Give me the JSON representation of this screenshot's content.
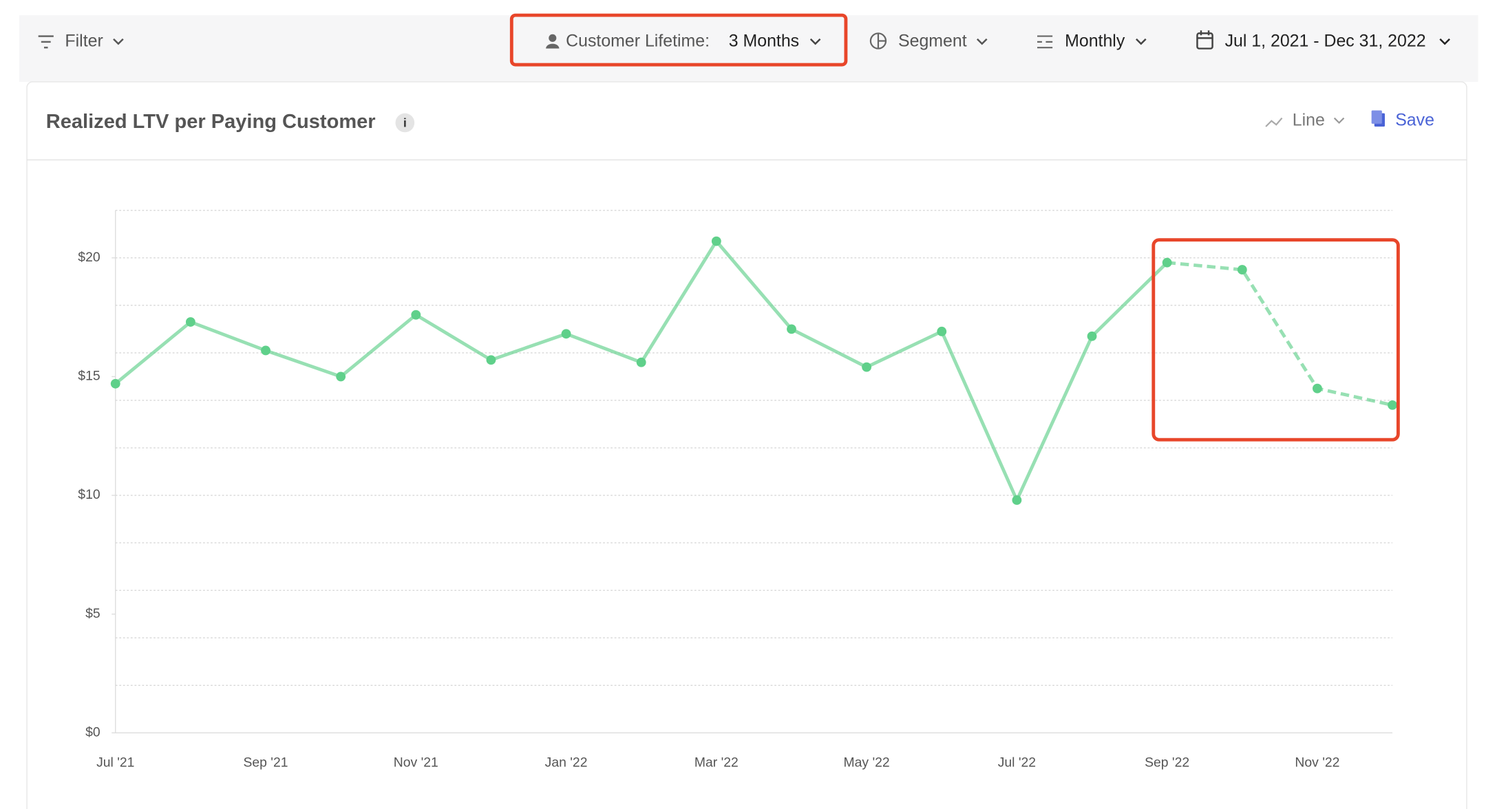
{
  "toolbar": {
    "filter": "Filter",
    "lifetime_label": "Customer Lifetime:",
    "lifetime_value": "3 Months",
    "segment": "Segment",
    "interval": "Monthly",
    "date_range": "Jul 1, 2021 - Dec 31, 2022"
  },
  "card": {
    "info_icon": "i",
    "chart_type_button": "Line",
    "save_button": "Save"
  },
  "chart_data": {
    "type": "line",
    "title": "Realized LTV per Paying Customer",
    "categories": [
      "Jul '21",
      null,
      "Sep '21",
      null,
      "Nov '21",
      null,
      "Jan '22",
      null,
      "Mar '22",
      null,
      "May '22",
      null,
      "Jul '22",
      null,
      "Sep '22",
      null,
      "Nov '22",
      null
    ],
    "series": [
      {
        "name": "Realized LTV",
        "color": "#5fd08a",
        "values": [
          14.7,
          17.3,
          16.1,
          15.0,
          17.6,
          15.7,
          16.8,
          15.6,
          20.7,
          17.0,
          15.4,
          16.9,
          9.8,
          16.7,
          19.8,
          19.5,
          14.5,
          13.8
        ]
      }
    ],
    "dashed_from_index": 14,
    "ylim": [
      0,
      22
    ],
    "yticks": [
      {
        "value": 0,
        "label": "$0"
      },
      {
        "value": 5,
        "label": "$5"
      },
      {
        "value": 10,
        "label": "$10"
      },
      {
        "value": 15,
        "label": "$15"
      },
      {
        "value": 20,
        "label": "$20"
      }
    ],
    "grid_lines": [
      2,
      4,
      6,
      8,
      10,
      12,
      14,
      16,
      18,
      20,
      22
    ],
    "grid": true
  }
}
